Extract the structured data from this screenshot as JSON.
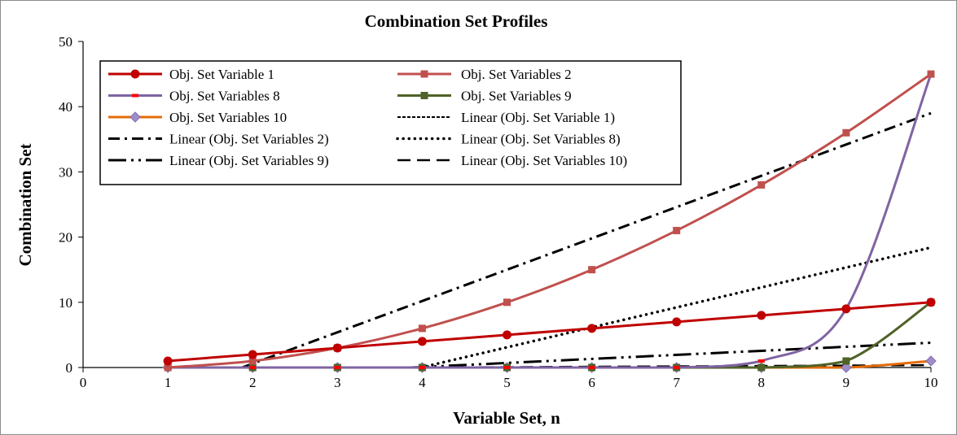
{
  "chart_data": {
    "type": "line",
    "title": "Combination Set Profiles",
    "xlabel": "Variable Set, n",
    "ylabel": "Combination Set",
    "xlim": [
      0,
      10
    ],
    "ylim": [
      0,
      50
    ],
    "x_ticks": [
      0,
      1,
      2,
      3,
      4,
      5,
      6,
      7,
      8,
      9,
      10
    ],
    "y_ticks": [
      0,
      10,
      20,
      30,
      40,
      50
    ],
    "grid": false,
    "legend_placement": "top-left, inside plot, two columns",
    "x": [
      1,
      2,
      3,
      4,
      5,
      6,
      7,
      8,
      9,
      10
    ],
    "series": [
      {
        "name": "Obj. Set Variable 1",
        "color": "#c00000",
        "marker": "circle",
        "values": [
          1,
          2,
          3,
          4,
          5,
          6,
          7,
          8,
          9,
          10
        ]
      },
      {
        "name": "Obj. Set Variables 2",
        "color": "#c0504d",
        "marker": "square",
        "values": [
          0,
          1,
          3,
          6,
          10,
          15,
          21,
          28,
          36,
          45
        ]
      },
      {
        "name": "Obj. Set Variables 8",
        "color": "#8064a2",
        "marker": "dash",
        "values": [
          0,
          0,
          0,
          0,
          0,
          0,
          0,
          1,
          9,
          45
        ]
      },
      {
        "name": "Obj. Set Variables 9",
        "color": "#4f6228",
        "marker": "square",
        "values": [
          0,
          0,
          0,
          0,
          0,
          0,
          0,
          0,
          1,
          10
        ]
      },
      {
        "name": "Obj. Set Variables 10",
        "color": "#e46c0a",
        "marker": "diamond",
        "values": [
          0,
          0,
          0,
          0,
          0,
          0,
          0,
          0,
          0,
          1
        ]
      }
    ],
    "trendlines": [
      {
        "name": "Linear (Obj. Set Variable 1)",
        "dash": "short-dash",
        "slope": 1,
        "intercept": 0
      },
      {
        "name": "Linear (Obj. Set Variables 2)",
        "dash": "dash-dot",
        "slope": 4.8,
        "intercept": -9
      },
      {
        "name": "Linear (Obj. Set Variables 8)",
        "dash": "round-dot",
        "slope": 3.06,
        "intercept": -12.2
      },
      {
        "name": "Linear (Obj. Set Variables 9)",
        "dash": "long-dash-dot-dot",
        "slope": 0.62,
        "intercept": -2.4
      },
      {
        "name": "Linear (Obj. Set Variables 10)",
        "dash": "long-dash",
        "slope": 0.06,
        "intercept": -0.24
      }
    ]
  }
}
